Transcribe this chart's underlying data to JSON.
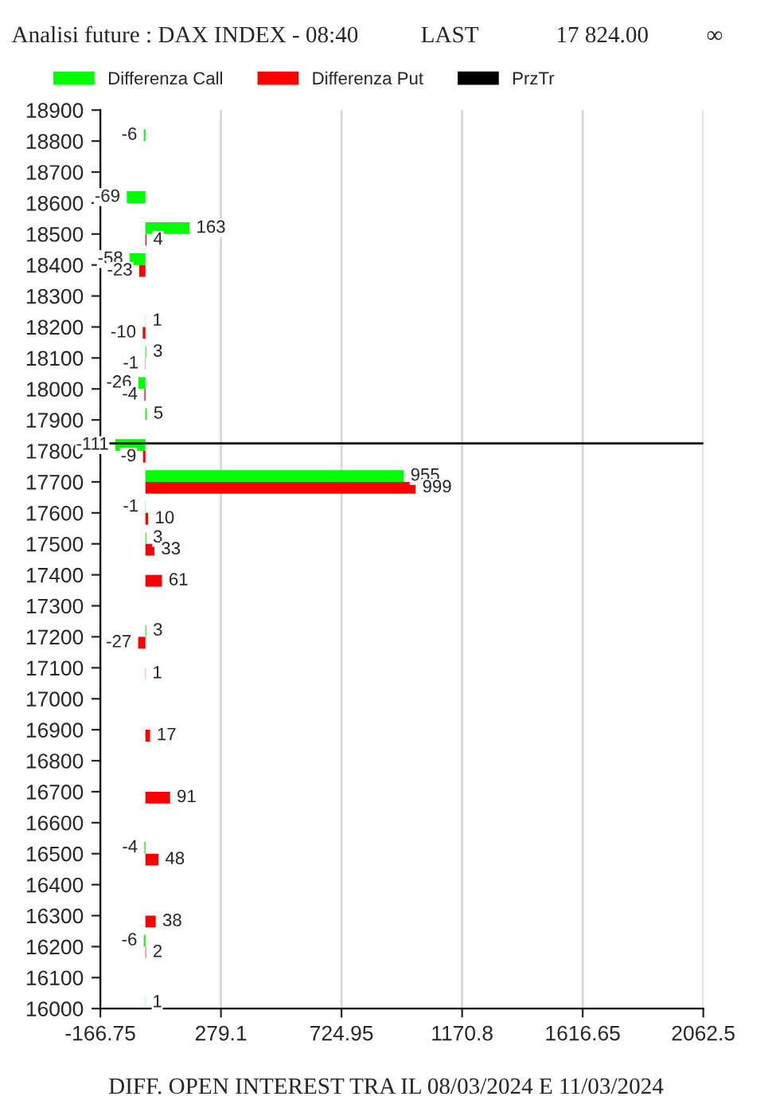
{
  "chart_data": {
    "type": "bar",
    "orientation": "horizontal",
    "title": "Analisi future : DAX INDEX - 08:40",
    "annotations": [
      "LAST",
      "17 824.00",
      "∞"
    ],
    "xlabel": "DIFF. OPEN INTEREST TRA IL 08/03/2024 E 11/03/2024",
    "x": [
      18800,
      18600,
      18500,
      18400,
      18200,
      18100,
      18000,
      17900,
      17800,
      17700,
      17600,
      17500,
      17400,
      17200,
      17100,
      16900,
      16700,
      16500,
      16300,
      16200,
      16000
    ],
    "series": [
      {
        "name": "Differenza Call",
        "color": "#00ff00",
        "values": [
          -6,
          -69,
          163,
          -58,
          1,
          3,
          -26,
          5,
          -111,
          955,
          -1,
          3,
          null,
          3,
          null,
          null,
          null,
          -4,
          null,
          -6,
          1
        ]
      },
      {
        "name": "Differenza Put",
        "color": "#ff0000",
        "values": [
          null,
          null,
          4,
          -23,
          -10,
          -1,
          -4,
          null,
          -9,
          999,
          10,
          33,
          61,
          -27,
          1,
          17,
          91,
          48,
          38,
          2,
          null
        ]
      }
    ],
    "data_labels": true,
    "ref_lines": [
      {
        "axis": "y",
        "value": 17824,
        "label": "PrzTr",
        "color": "#000000"
      }
    ],
    "xlim": [
      -166.75,
      2062.5
    ],
    "xticks": [
      -166.75,
      279.1,
      724.95,
      1170.8,
      1616.65,
      2062.5
    ],
    "ylim": [
      16000,
      18900
    ],
    "yticks": [
      16000,
      16100,
      16200,
      16300,
      16400,
      16500,
      16600,
      16700,
      16800,
      16900,
      17000,
      17100,
      17200,
      17300,
      17400,
      17500,
      17600,
      17700,
      17800,
      17900,
      18000,
      18100,
      18200,
      18300,
      18400,
      18500,
      18600,
      18700,
      18800,
      18900
    ],
    "grid": "x",
    "legend": "top"
  }
}
